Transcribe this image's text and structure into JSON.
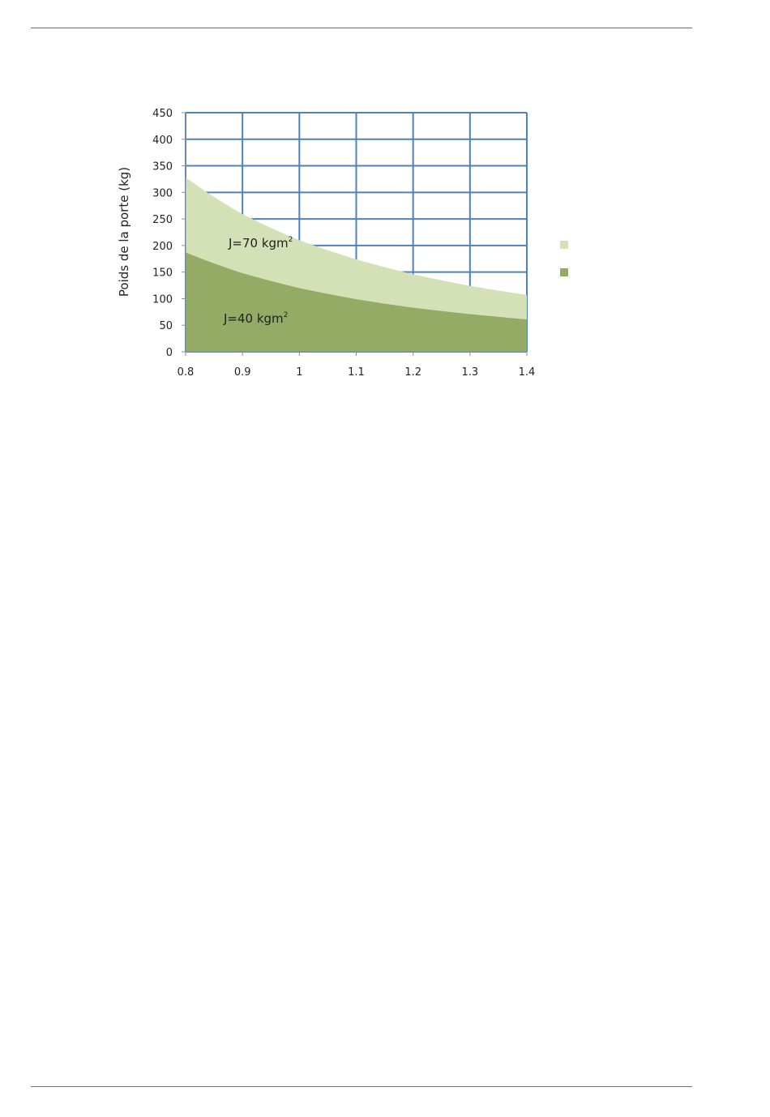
{
  "chart_data": {
    "type": "area",
    "ylabel": "Poids de la porte (kg)",
    "xlabel": "",
    "xlim": [
      0.8,
      1.4
    ],
    "ylim": [
      0,
      450
    ],
    "x_ticks": [
      "0.8",
      "0.9",
      "1",
      "1.1",
      "1.2",
      "1.3",
      "1.4"
    ],
    "y_ticks": [
      "0",
      "50",
      "100",
      "150",
      "200",
      "250",
      "300",
      "350",
      "400",
      "450"
    ],
    "grid": true,
    "x": [
      0.8,
      0.9,
      1.0,
      1.1,
      1.2,
      1.3,
      1.4
    ],
    "series": [
      {
        "annotation": "J=70 kgm",
        "annotation_sup": "2",
        "values": [
          328,
          259,
          210,
          174,
          146,
          124,
          107
        ],
        "color": "#d4e1b6"
      },
      {
        "annotation": "J=40 kgm",
        "annotation_sup": "2",
        "values": [
          187,
          148,
          120,
          99,
          83,
          71,
          61
        ],
        "color": "#94ab66"
      }
    ],
    "legend": {
      "placement": "right",
      "labels_visible": false
    }
  },
  "colors": {
    "grid": "#4f81bd",
    "axis": "#8e8e8e",
    "rule": "#6d6d6d"
  }
}
